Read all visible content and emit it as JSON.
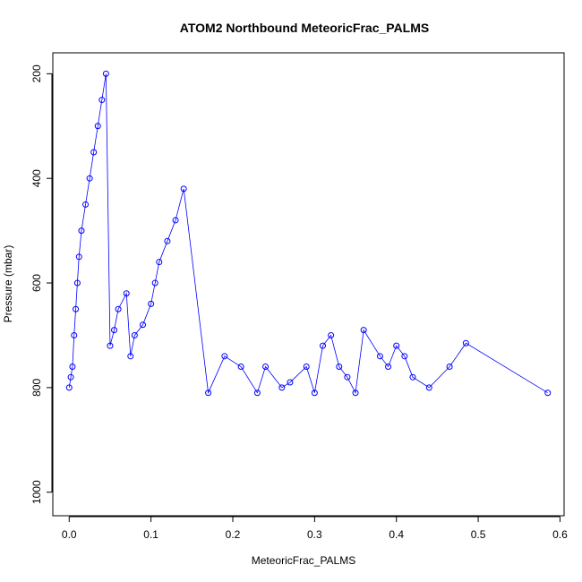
{
  "chart_data": {
    "type": "scatter",
    "title": "ATOM2 Northbound MeteoricFrac_PALMS",
    "xlabel": "MeteoricFrac_PALMS",
    "ylabel": "Pressure (mbar)",
    "xlim": [
      -0.02,
      0.605
    ],
    "ylim": [
      1045,
      160
    ],
    "y_reversed": true,
    "grid": false,
    "x_ticks": [
      "0.0",
      "0.1",
      "0.2",
      "0.3",
      "0.4",
      "0.5",
      "0.6"
    ],
    "y_ticks": [
      "200",
      "400",
      "600",
      "800",
      "1000"
    ],
    "series": [
      {
        "color": "#0000ff",
        "marker": "open-circle",
        "x": [
          0.0,
          0.002,
          0.004,
          0.006,
          0.008,
          0.01,
          0.012,
          0.015,
          0.02,
          0.025,
          0.03,
          0.035,
          0.04,
          0.045,
          0.05,
          0.055,
          0.06,
          0.07,
          0.075,
          0.08,
          0.09,
          0.1,
          0.105,
          0.11,
          0.12,
          0.13,
          0.14,
          0.17,
          0.19,
          0.21,
          0.23,
          0.24,
          0.26,
          0.27,
          0.29,
          0.3,
          0.31,
          0.32,
          0.33,
          0.34,
          0.35,
          0.36,
          0.38,
          0.39,
          0.4,
          0.41,
          0.42,
          0.44,
          0.465,
          0.485,
          0.585
        ],
        "y": [
          800,
          780,
          760,
          700,
          650,
          600,
          550,
          500,
          450,
          400,
          350,
          300,
          250,
          200,
          720,
          690,
          650,
          620,
          740,
          700,
          680,
          640,
          600,
          560,
          520,
          480,
          420,
          810,
          740,
          760,
          810,
          760,
          800,
          790,
          760,
          810,
          720,
          700,
          760,
          780,
          810,
          690,
          740,
          760,
          720,
          740,
          780,
          800,
          760,
          715,
          810
        ]
      }
    ]
  }
}
